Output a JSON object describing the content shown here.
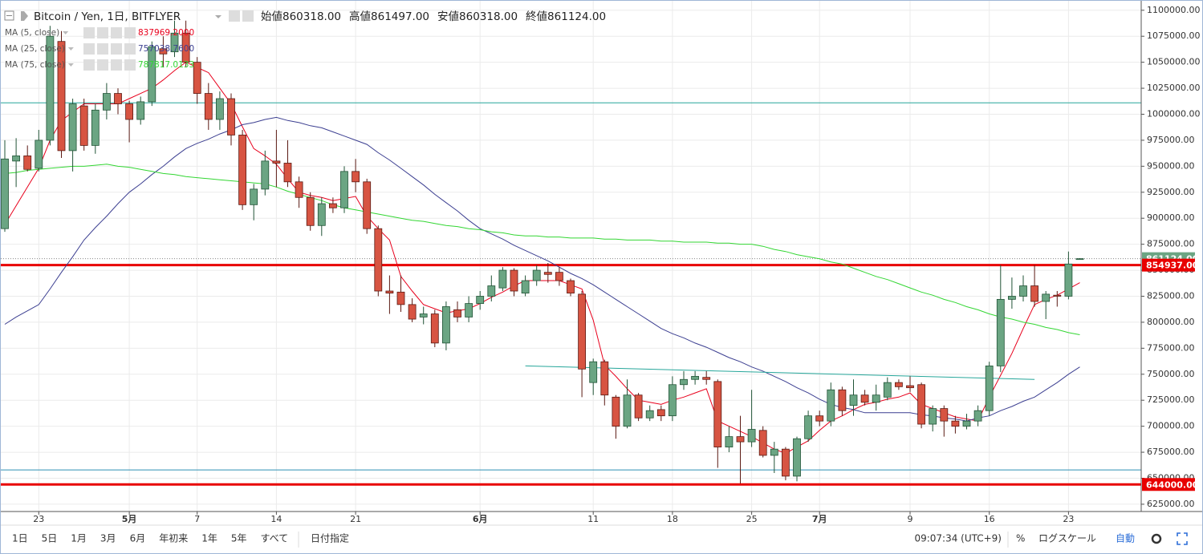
{
  "chart_data": {
    "type": "candlestick",
    "title": "Bitcoin / Yen, 1日, BITFLYER",
    "ohlc_header": [
      {
        "label": "始値",
        "value": "860318.00"
      },
      {
        "label": "高値",
        "value": "861497.00"
      },
      {
        "label": "安値",
        "value": "860318.00"
      },
      {
        "label": "終値",
        "value": "861124.00"
      }
    ],
    "categories": [
      null,
      null,
      null,
      "23",
      null,
      null,
      null,
      null,
      null,
      null,
      null,
      "5月",
      null,
      null,
      null,
      null,
      null,
      "7",
      null,
      null,
      null,
      null,
      null,
      null,
      "14",
      null,
      null,
      null,
      null,
      null,
      null,
      "21",
      null,
      null,
      null,
      null,
      null,
      null,
      null,
      null,
      null,
      null,
      "6月",
      null,
      null,
      null,
      null,
      null,
      null,
      null,
      null,
      null,
      "11",
      null,
      null,
      null,
      null,
      null,
      null,
      "18",
      null,
      null,
      null,
      null,
      null,
      null,
      "25",
      null,
      null,
      null,
      null,
      null,
      "7月",
      null,
      null,
      null,
      null,
      null,
      null,
      null,
      "9",
      null,
      null,
      null,
      null,
      null,
      null,
      "16",
      null,
      null,
      null,
      null,
      null,
      null,
      "23",
      null
    ],
    "open": [
      890000,
      955000,
      960000,
      948000,
      975000,
      1070000,
      965000,
      1008000,
      970000,
      1004000,
      1020000,
      1010000,
      995000,
      1012000,
      1063000,
      1060000,
      1078000,
      1050000,
      1020000,
      995000,
      1015000,
      980000,
      913000,
      928000,
      955000,
      953000,
      935000,
      920000,
      893000,
      914000,
      910000,
      945000,
      935000,
      890000,
      830000,
      829000,
      817000,
      805000,
      808000,
      780000,
      812000,
      805000,
      818000,
      825000,
      833000,
      850000,
      828000,
      840000,
      848000,
      848000,
      840000,
      827000,
      742000,
      762000,
      728000,
      700000,
      730000,
      708000,
      716000,
      710000,
      740000,
      745000,
      747000,
      743000,
      680000,
      690000,
      685000,
      696000,
      672000,
      678000,
      652000,
      688000,
      710000,
      705000,
      735000,
      720000,
      730000,
      723000,
      728000,
      742000,
      739000,
      740000,
      702000,
      717000,
      705000,
      700000,
      705000,
      715000,
      758000,
      822000,
      825000,
      835000,
      820000,
      826000,
      825000,
      860318
    ],
    "high": [
      975000,
      977000,
      970000,
      985000,
      1085000,
      1080000,
      1015000,
      1015000,
      1010000,
      1030000,
      1025000,
      1013000,
      1017000,
      1070000,
      1075000,
      1090000,
      1090000,
      1055000,
      1030000,
      1022000,
      1020000,
      985000,
      933000,
      965000,
      985000,
      975000,
      940000,
      925000,
      920000,
      920000,
      950000,
      957000,
      938000,
      893000,
      845000,
      845000,
      823000,
      815000,
      812000,
      820000,
      820000,
      825000,
      830000,
      845000,
      853000,
      852000,
      845000,
      855000,
      857000,
      853000,
      842000,
      830000,
      765000,
      764000,
      730000,
      745000,
      732000,
      720000,
      720000,
      748000,
      753000,
      753000,
      753000,
      745000,
      700000,
      710000,
      735000,
      700000,
      685000,
      680000,
      690000,
      715000,
      715000,
      742000,
      738000,
      745000,
      735000,
      740000,
      747000,
      745000,
      748000,
      742000,
      720000,
      720000,
      710000,
      712000,
      720000,
      762000,
      855000,
      843000,
      845000,
      855000,
      830000,
      830000,
      868000,
      861497
    ],
    "low": [
      887000,
      930000,
      945000,
      945000,
      970000,
      958000,
      945000,
      965000,
      962000,
      995000,
      1000000,
      973000,
      990000,
      1008000,
      1045000,
      1055000,
      1045000,
      1010000,
      985000,
      985000,
      970000,
      908000,
      898000,
      922000,
      930000,
      930000,
      910000,
      888000,
      883000,
      905000,
      905000,
      925000,
      885000,
      825000,
      808000,
      810000,
      800000,
      798000,
      776000,
      773000,
      800000,
      800000,
      812000,
      820000,
      830000,
      825000,
      825000,
      835000,
      838000,
      835000,
      825000,
      728000,
      730000,
      720000,
      688000,
      698000,
      705000,
      705000,
      705000,
      705000,
      735000,
      740000,
      740000,
      660000,
      675000,
      645000,
      680000,
      670000,
      655000,
      648000,
      647000,
      685000,
      700000,
      700000,
      710000,
      710000,
      720000,
      715000,
      725000,
      735000,
      733000,
      698000,
      695000,
      690000,
      693000,
      697000,
      700000,
      710000,
      752000,
      813000,
      820000,
      815000,
      803000,
      815000,
      822000,
      860318
    ],
    "close": [
      957000,
      960000,
      947000,
      975000,
      1075000,
      965000,
      1010000,
      970000,
      1004000,
      1020000,
      1010000,
      995000,
      1012000,
      1065000,
      1058000,
      1078000,
      1050000,
      1020000,
      995000,
      1015000,
      980000,
      913000,
      928000,
      955000,
      953000,
      935000,
      920000,
      893000,
      914000,
      910000,
      945000,
      935000,
      890000,
      830000,
      828000,
      817000,
      803000,
      808000,
      780000,
      815000,
      805000,
      818000,
      825000,
      835000,
      850000,
      830000,
      840000,
      850000,
      846000,
      840000,
      828000,
      755000,
      762000,
      730000,
      700000,
      730000,
      708000,
      715000,
      710000,
      740000,
      745000,
      748000,
      745000,
      680000,
      690000,
      685000,
      697000,
      672000,
      678000,
      652000,
      688000,
      710000,
      705000,
      735000,
      715000,
      730000,
      723000,
      730000,
      742000,
      738000,
      737000,
      702000,
      717000,
      705000,
      700000,
      705000,
      715000,
      758000,
      822000,
      825000,
      835000,
      820000,
      827000,
      825000,
      856000,
      861124
    ],
    "up_color": "#6ba583",
    "down_color": "#d75442",
    "series": [
      {
        "name": "MA (5, close)",
        "legend_value": "837969.2000",
        "color": "#e8001c",
        "values": [
          894000,
          912000,
          930000,
          948000,
          975000,
          994000,
          1002000,
          1010000,
          1010000,
          1010000,
          1010000,
          1015000,
          1020000,
          1025000,
          1033000,
          1042000,
          1050000,
          1045000,
          1040000,
          1025000,
          1010000,
          988000,
          967000,
          960000,
          952000,
          938000,
          925000,
          922000,
          920000,
          917000,
          919000,
          921000,
          902000,
          890000,
          879000,
          844000,
          830000,
          817000,
          813000,
          809000,
          811000,
          813000,
          818000,
          824000,
          829000,
          835000,
          840000,
          840000,
          840000,
          840000,
          836000,
          832000,
          802000,
          759000,
          748000,
          736000,
          725000,
          723000,
          721000,
          725000,
          728000,
          732000,
          736000,
          705000,
          700000,
          695000,
          690000,
          684000,
          678000,
          674000,
          680000,
          686000,
          696000,
          705000,
          710000,
          716000,
          721000,
          723000,
          726000,
          728000,
          732000,
          721000,
          717000,
          713000,
          709000,
          707000,
          705000,
          728000,
          749000,
          770000,
          794000,
          817000,
          822000,
          826000,
          832000,
          838000
        ]
      },
      {
        "name": "MA (25, close)",
        "legend_value": "757038.7600",
        "color": "#3c3f91",
        "values": [
          798000,
          805000,
          811000,
          817000,
          832000,
          848000,
          863000,
          879000,
          891000,
          902000,
          914000,
          925000,
          933000,
          942000,
          950000,
          959000,
          967000,
          972000,
          976000,
          981000,
          985000,
          990000,
          992000,
          995000,
          997000,
          994000,
          992000,
          989000,
          987000,
          983000,
          979000,
          975000,
          971000,
          963000,
          956000,
          948000,
          940000,
          932000,
          923000,
          915000,
          907000,
          898000,
          890000,
          885000,
          880000,
          874000,
          869000,
          864000,
          859000,
          853000,
          847000,
          842000,
          836000,
          829000,
          822000,
          815000,
          808000,
          801000,
          794000,
          789000,
          785000,
          780000,
          776000,
          771000,
          766000,
          762000,
          757000,
          753000,
          748000,
          743000,
          737000,
          732000,
          726000,
          721000,
          718000,
          716000,
          713000,
          713000,
          713000,
          713000,
          713000,
          711000,
          710000,
          708000,
          707000,
          705000,
          708000,
          710000,
          715000,
          719000,
          724000,
          728000,
          735000,
          742000,
          750000,
          757000
        ]
      },
      {
        "name": "MA (75, close)",
        "legend_value": "787817.0133",
        "color": "#33d633",
        "values": [
          943000,
          944000,
          946000,
          947000,
          948000,
          949000,
          950000,
          950000,
          951000,
          952000,
          950000,
          949000,
          947000,
          945000,
          943000,
          942000,
          940000,
          939000,
          938000,
          937000,
          936000,
          935000,
          934000,
          933000,
          930000,
          926000,
          923000,
          920000,
          917000,
          913000,
          910000,
          908000,
          906000,
          904000,
          902000,
          900000,
          898000,
          897000,
          895000,
          893000,
          892000,
          890000,
          889000,
          887000,
          886000,
          884000,
          883000,
          883000,
          882000,
          882000,
          881000,
          881000,
          881000,
          880000,
          880000,
          879000,
          879000,
          879000,
          878000,
          878000,
          877000,
          877000,
          877000,
          876000,
          876000,
          875000,
          875000,
          873000,
          870000,
          868000,
          865000,
          863000,
          861000,
          858000,
          856000,
          852000,
          848000,
          844000,
          841000,
          837000,
          833000,
          829000,
          826000,
          822000,
          819000,
          815000,
          812000,
          808000,
          805000,
          803000,
          800000,
          798000,
          795000,
          793000,
          790000,
          788000
        ]
      }
    ],
    "hlines": [
      {
        "value": 854937,
        "label": "854937.00",
        "color": "#e80000"
      },
      {
        "value": 644000,
        "label": "644000.00",
        "color": "#e80000"
      },
      {
        "value": 1011000,
        "color": "#26a69a"
      },
      {
        "value": 658000,
        "color": "#2d8fb4"
      }
    ],
    "trendline": {
      "from": [
        46,
        758000
      ],
      "to": [
        91,
        745000
      ],
      "color": "#26a69a"
    },
    "last_price": {
      "value": 861124,
      "label": "861124.00",
      "color": "#6ba583"
    },
    "ylim": [
      618000,
      1106000
    ],
    "yticks": [
      {
        "value": 625000,
        "label": "625000.00"
      },
      {
        "value": 650000,
        "label": "650000.00"
      },
      {
        "value": 675000,
        "label": "675000.00"
      },
      {
        "value": 700000,
        "label": "700000.00"
      },
      {
        "value": 725000,
        "label": "725000.00"
      },
      {
        "value": 750000,
        "label": "750000.00"
      },
      {
        "value": 775000,
        "label": "775000.00"
      },
      {
        "value": 800000,
        "label": "800000.00"
      },
      {
        "value": 825000,
        "label": "825000.00"
      },
      {
        "value": 850000,
        "label": "850000.00"
      },
      {
        "value": 875000,
        "label": "875000.00"
      },
      {
        "value": 900000,
        "label": "900000.00"
      },
      {
        "value": 925000,
        "label": "925000.00"
      },
      {
        "value": 950000,
        "label": "950000.00"
      },
      {
        "value": 975000,
        "label": "975000.00"
      },
      {
        "value": 1000000,
        "label": "1000000.00"
      },
      {
        "value": 1025000,
        "label": "1025000.00"
      },
      {
        "value": 1050000,
        "label": "1050000.00"
      },
      {
        "value": 1075000,
        "label": "1075000.00"
      },
      {
        "value": 1100000,
        "label": "1100000.00"
      }
    ],
    "grid": true
  },
  "toolbar": {
    "ranges": [
      "1日",
      "5日",
      "1月",
      "3月",
      "6月",
      "年初来",
      "1年",
      "5年",
      "すべて"
    ],
    "custom": "日付指定",
    "time": "09:07:34 (UTC+9)",
    "percent": "%",
    "log": "ログスケール",
    "auto": "自動"
  }
}
